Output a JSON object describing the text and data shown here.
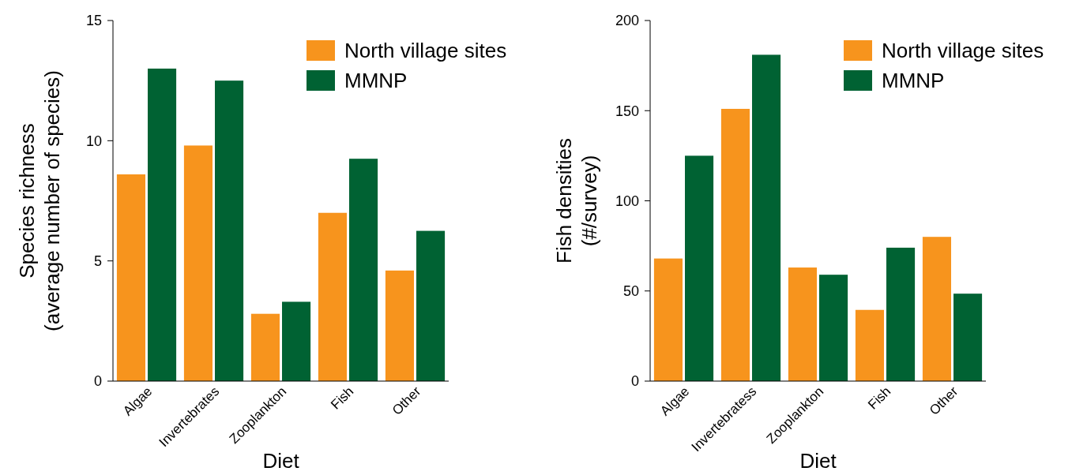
{
  "chart_data": [
    {
      "type": "bar",
      "xlabel": "Diet",
      "ylabel": "Species richness\n(average number of species)",
      "categories": [
        "Algae",
        "Invertebrates",
        "Zooplankton",
        "Fish",
        "Other"
      ],
      "series": [
        {
          "name": "North village sites",
          "color": "#f7941d",
          "values": [
            8.6,
            9.8,
            2.8,
            7.0,
            4.6
          ]
        },
        {
          "name": "MMNP",
          "color": "#006233",
          "values": [
            13.0,
            12.5,
            3.3,
            9.25,
            6.25
          ]
        }
      ],
      "ylim": [
        0,
        15
      ],
      "yticks": [
        0,
        5,
        10,
        15
      ],
      "legend": "top right",
      "grid": false
    },
    {
      "type": "bar",
      "xlabel": "Diet",
      "ylabel": "Fish densities\n(#/survey)",
      "categories": [
        "Algae",
        "Invertebratess",
        "Zooplankton",
        "Fish",
        "Other"
      ],
      "series": [
        {
          "name": "North village sites",
          "color": "#f7941d",
          "values": [
            68,
            151,
            63,
            39.5,
            80
          ]
        },
        {
          "name": "MMNP",
          "color": "#006233",
          "values": [
            125,
            181,
            59,
            74,
            48.5
          ]
        }
      ],
      "ylim": [
        0,
        200
      ],
      "yticks": [
        0,
        50,
        100,
        150,
        200
      ],
      "legend": "top right",
      "grid": false
    }
  ]
}
